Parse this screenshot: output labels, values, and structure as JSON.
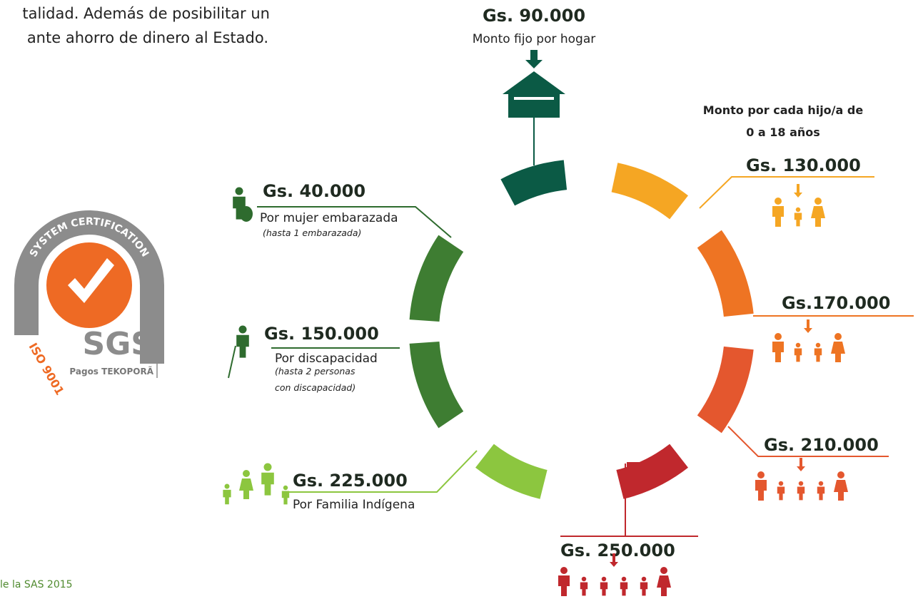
{
  "intro": {
    "lines": [
      "talidad. Además  de posibilitar un",
      "ante ahorro de dinero al Estado."
    ]
  },
  "logo": {
    "arc_text": "SYSTEM CERTIFICATION",
    "iso": "ISO 9001",
    "brand": "SGS",
    "caption": "Pagos TEKOPORÃ"
  },
  "center": {
    "amount": "Gs. 90.000",
    "label": "Monto fijo por hogar"
  },
  "children_heading": [
    "Monto por cada hijo/a de",
    "0 a 18 años"
  ],
  "child_amounts": [
    "Gs. 130.000",
    "Gs.170.000",
    "Gs. 210.000",
    "Gs. 250.000"
  ],
  "left_items": [
    {
      "amount": "Gs. 40.000",
      "lines": [
        "Por mujer embarazada",
        "(hasta 1 embarazada)"
      ]
    },
    {
      "amount": "Gs. 150.000",
      "lines": [
        "Por discapacidad",
        "(hasta 2 personas",
        "con discapacidad)"
      ]
    },
    {
      "amount": "Gs. 225.000",
      "lines": [
        "Por Familia Indígena"
      ]
    }
  ],
  "footer": "le la SAS 2015"
}
